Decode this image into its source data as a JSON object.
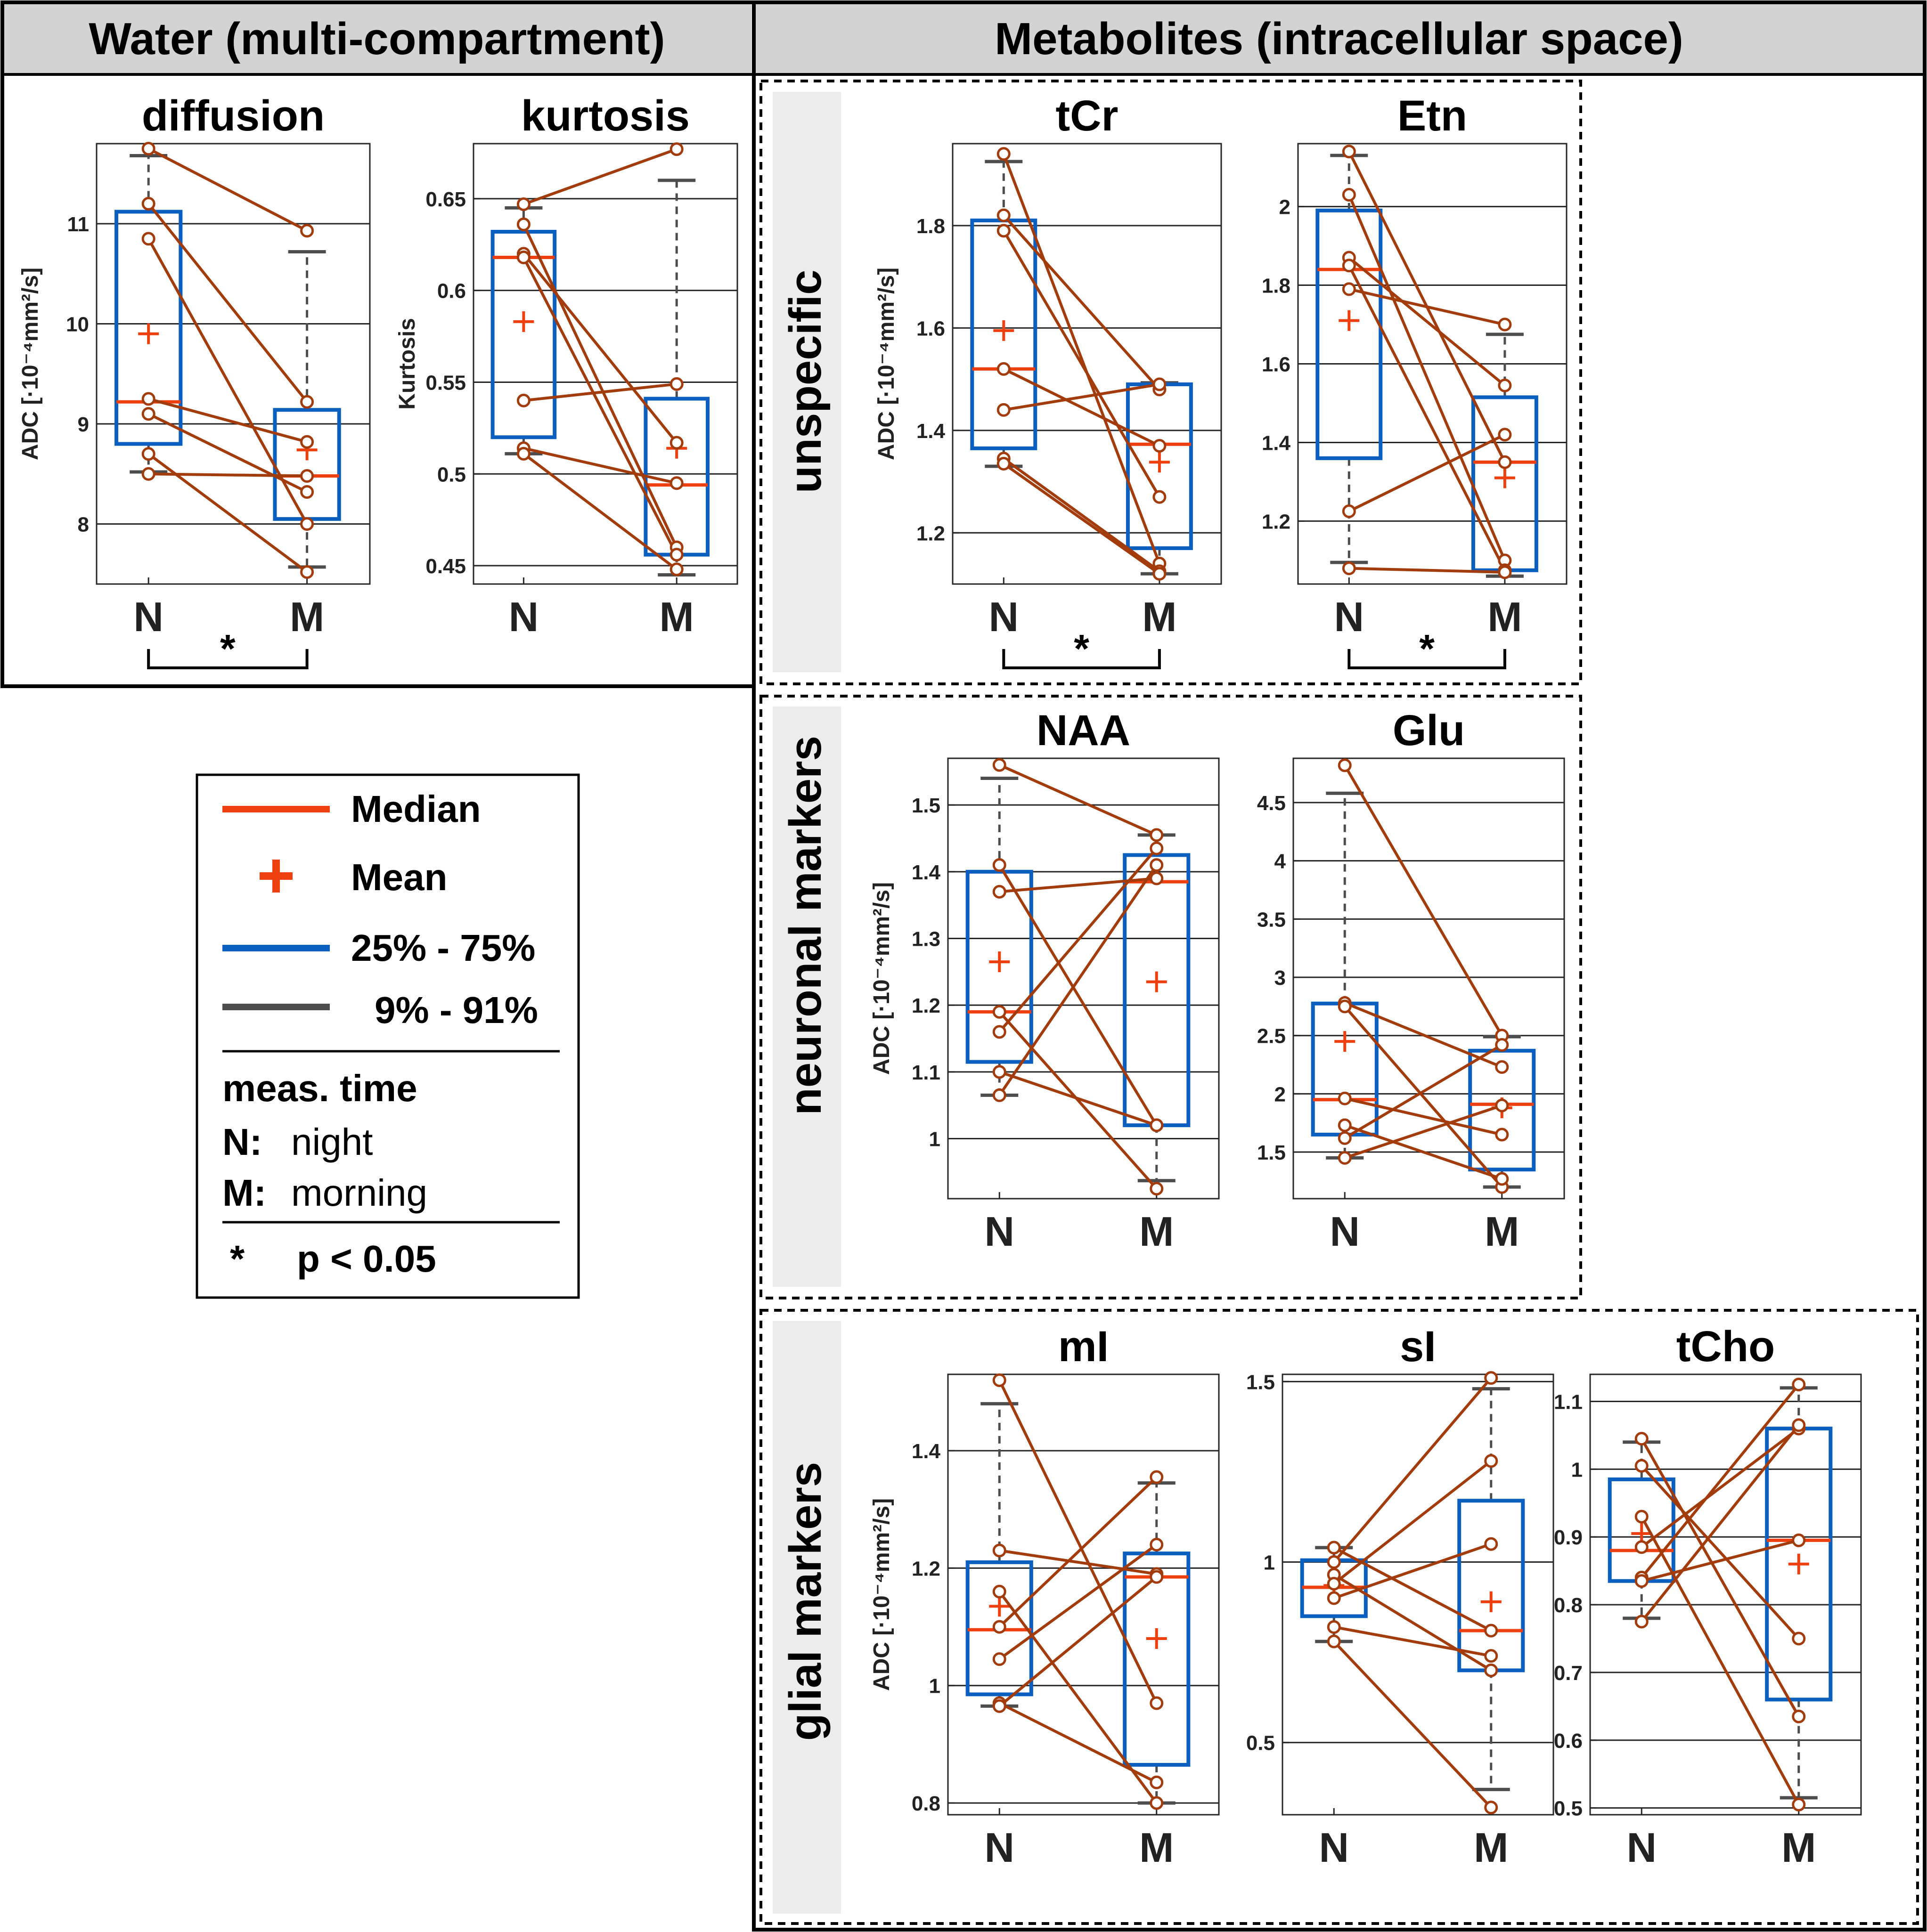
{
  "headers": {
    "water": "Water (multi-compartment)",
    "metabolites": "Metabolites (intracellular space)"
  },
  "groups": {
    "unspecific": "unspecific",
    "neuronal": "neuronal markers",
    "glial": "glial markers"
  },
  "legend": {
    "median": "Median",
    "mean": "Mean",
    "iqr": "25% - 75%",
    "whisker": "9% - 91%",
    "meas_time": "meas. time",
    "n_key": "N:",
    "n_val": "night",
    "m_key": "M:",
    "m_val": "morning",
    "star": "*",
    "p_text": "p < 0.05"
  },
  "colors": {
    "median": "#ee3f0f",
    "mean": "#ee3f0f",
    "box": "#0a5fbf",
    "whisker": "#4d4d4d",
    "pair": "#a23c0c"
  },
  "chart_data": [
    {
      "id": "diffusion",
      "type": "boxplot-paired",
      "title": "diffusion",
      "ylabel": "ADC [·10⁻⁴mm²/s]",
      "ylim": [
        7.4,
        11.8
      ],
      "yticks": [
        8,
        9,
        10,
        11
      ],
      "categories": [
        "N",
        "M"
      ],
      "boxes": [
        {
          "q1": 8.8,
          "median": 9.22,
          "q3": 11.12,
          "mean": 9.9,
          "wlo": 8.52,
          "whi": 11.68
        },
        {
          "q1": 8.05,
          "median": 8.48,
          "q3": 9.14,
          "mean": 8.74,
          "wlo": 7.57,
          "whi": 10.72
        }
      ],
      "pairs": [
        [
          11.75,
          10.93
        ],
        [
          11.2,
          9.22
        ],
        [
          10.85,
          8.0
        ],
        [
          9.25,
          8.82
        ],
        [
          9.1,
          8.32
        ],
        [
          8.7,
          7.52
        ],
        [
          8.5,
          8.48
        ]
      ],
      "significant": true,
      "star": "*"
    },
    {
      "id": "kurtosis",
      "type": "boxplot-paired",
      "title": "kurtosis",
      "ylabel": "Kurtosis",
      "ylim": [
        0.44,
        0.68
      ],
      "yticks": [
        0.45,
        0.5,
        0.55,
        0.6,
        0.65
      ],
      "categories": [
        "N",
        "M"
      ],
      "boxes": [
        {
          "q1": 0.52,
          "median": 0.618,
          "q3": 0.632,
          "mean": 0.583,
          "wlo": 0.511,
          "whi": 0.645
        },
        {
          "q1": 0.456,
          "median": 0.494,
          "q3": 0.541,
          "mean": 0.514,
          "wlo": 0.445,
          "whi": 0.66
        }
      ],
      "pairs": [
        [
          0.647,
          0.677
        ],
        [
          0.636,
          0.46
        ],
        [
          0.62,
          0.517
        ],
        [
          0.618,
          0.456
        ],
        [
          0.54,
          0.549
        ],
        [
          0.514,
          0.495
        ],
        [
          0.511,
          0.448
        ]
      ],
      "significant": false
    },
    {
      "id": "tCr",
      "type": "boxplot-paired",
      "title": "tCr",
      "ylabel": "ADC [·10⁻⁴mm²/s]",
      "ylim": [
        1.1,
        1.96
      ],
      "yticks": [
        1.2,
        1.4,
        1.6,
        1.8
      ],
      "categories": [
        "N",
        "M"
      ],
      "boxes": [
        {
          "q1": 1.365,
          "median": 1.52,
          "q3": 1.81,
          "mean": 1.595,
          "wlo": 1.33,
          "whi": 1.925
        },
        {
          "q1": 1.17,
          "median": 1.373,
          "q3": 1.49,
          "mean": 1.338,
          "wlo": 1.12,
          "whi": 1.493
        }
      ],
      "pairs": [
        [
          1.94,
          1.14
        ],
        [
          1.82,
          1.48
        ],
        [
          1.79,
          1.27
        ],
        [
          1.52,
          1.37
        ],
        [
          1.44,
          1.49
        ],
        [
          1.345,
          1.125
        ],
        [
          1.335,
          1.12
        ]
      ],
      "significant": true,
      "star": "*"
    },
    {
      "id": "Etn",
      "type": "boxplot-paired",
      "title": "Etn",
      "ylabel": "",
      "ylim": [
        1.04,
        2.16
      ],
      "yticks": [
        1.2,
        1.4,
        1.6,
        1.8,
        2
      ],
      "categories": [
        "N",
        "M"
      ],
      "boxes": [
        {
          "q1": 1.36,
          "median": 1.84,
          "q3": 1.99,
          "mean": 1.71,
          "wlo": 1.095,
          "whi": 2.13
        },
        {
          "q1": 1.075,
          "median": 1.35,
          "q3": 1.515,
          "mean": 1.31,
          "wlo": 1.06,
          "whi": 1.675
        }
      ],
      "pairs": [
        [
          2.14,
          1.35
        ],
        [
          2.03,
          1.1
        ],
        [
          1.87,
          1.545
        ],
        [
          1.85,
          1.075
        ],
        [
          1.79,
          1.7
        ],
        [
          1.225,
          1.42
        ],
        [
          1.08,
          1.07
        ]
      ],
      "significant": true,
      "star": "*"
    },
    {
      "id": "NAA",
      "type": "boxplot-paired",
      "title": "NAA",
      "ylabel": "ADC [·10⁻⁴mm²/s]",
      "ylim": [
        0.91,
        1.57
      ],
      "yticks": [
        1,
        1.1,
        1.2,
        1.3,
        1.4,
        1.5
      ],
      "categories": [
        "N",
        "M"
      ],
      "boxes": [
        {
          "q1": 1.115,
          "median": 1.19,
          "q3": 1.4,
          "mean": 1.265,
          "wlo": 1.065,
          "whi": 1.54
        },
        {
          "q1": 1.02,
          "median": 1.385,
          "q3": 1.425,
          "mean": 1.235,
          "wlo": 0.937,
          "whi": 1.455
        }
      ],
      "pairs": [
        [
          1.56,
          1.455
        ],
        [
          1.41,
          1.02
        ],
        [
          1.37,
          1.39
        ],
        [
          1.19,
          0.925
        ],
        [
          1.16,
          1.435
        ],
        [
          1.1,
          1.02
        ],
        [
          1.065,
          1.41
        ]
      ],
      "significant": false
    },
    {
      "id": "Glu",
      "type": "boxplot-paired",
      "title": "Glu",
      "ylabel": "",
      "ylim": [
        1.1,
        4.88
      ],
      "yticks": [
        1.5,
        2,
        2.5,
        3,
        3.5,
        4,
        4.5
      ],
      "categories": [
        "N",
        "M"
      ],
      "boxes": [
        {
          "q1": 1.65,
          "median": 1.95,
          "q3": 2.775,
          "mean": 2.45,
          "wlo": 1.45,
          "whi": 4.58
        },
        {
          "q1": 1.35,
          "median": 1.91,
          "q3": 2.37,
          "mean": 1.88,
          "wlo": 1.2,
          "whi": 2.49
        }
      ],
      "pairs": [
        [
          4.82,
          2.5
        ],
        [
          2.78,
          2.23
        ],
        [
          2.75,
          1.2
        ],
        [
          1.96,
          1.65
        ],
        [
          1.73,
          1.27
        ],
        [
          1.62,
          2.42
        ],
        [
          1.45,
          1.9
        ]
      ],
      "significant": false
    },
    {
      "id": "mI",
      "type": "boxplot-paired",
      "title": "mI",
      "ylabel": "ADC [·10⁻⁴mm²/s]",
      "ylim": [
        0.78,
        1.53
      ],
      "yticks": [
        0.8,
        1,
        1.2,
        1.4
      ],
      "categories": [
        "N",
        "M"
      ],
      "boxes": [
        {
          "q1": 0.985,
          "median": 1.095,
          "q3": 1.21,
          "mean": 1.135,
          "wlo": 0.965,
          "whi": 1.48
        },
        {
          "q1": 0.865,
          "median": 1.185,
          "q3": 1.225,
          "mean": 1.08,
          "wlo": 0.8,
          "whi": 1.345
        }
      ],
      "pairs": [
        [
          1.52,
          0.97
        ],
        [
          1.23,
          1.19
        ],
        [
          1.16,
          0.8
        ],
        [
          1.1,
          1.355
        ],
        [
          1.045,
          1.24
        ],
        [
          0.97,
          0.835
        ],
        [
          0.965,
          1.185
        ]
      ],
      "significant": false
    },
    {
      "id": "sI",
      "type": "boxplot-paired",
      "title": "sI",
      "ylabel": "",
      "ylim": [
        0.3,
        1.52
      ],
      "yticks": [
        0.5,
        1,
        1.5
      ],
      "categories": [
        "N",
        "M"
      ],
      "boxes": [
        {
          "q1": 0.85,
          "median": 0.93,
          "q3": 1.005,
          "mean": 0.935,
          "wlo": 0.78,
          "whi": 1.04
        },
        {
          "q1": 0.7,
          "median": 0.81,
          "q3": 1.17,
          "mean": 0.89,
          "wlo": 0.37,
          "whi": 1.48
        }
      ],
      "pairs": [
        [
          1.04,
          0.81
        ],
        [
          1.0,
          1.51
        ],
        [
          0.965,
          0.7
        ],
        [
          0.94,
          1.28
        ],
        [
          0.9,
          1.05
        ],
        [
          0.82,
          0.74
        ],
        [
          0.78,
          0.32
        ]
      ],
      "significant": false
    },
    {
      "id": "tCho",
      "type": "boxplot-paired",
      "title": "tCho",
      "ylabel": "",
      "ylim": [
        0.49,
        1.14
      ],
      "yticks": [
        0.5,
        0.6,
        0.7,
        0.8,
        0.9,
        1,
        1.1
      ],
      "categories": [
        "N",
        "M"
      ],
      "boxes": [
        {
          "q1": 0.835,
          "median": 0.88,
          "q3": 0.985,
          "mean": 0.905,
          "wlo": 0.78,
          "whi": 1.04
        },
        {
          "q1": 0.66,
          "median": 0.895,
          "q3": 1.06,
          "mean": 0.86,
          "wlo": 0.515,
          "whi": 1.12
        }
      ],
      "pairs": [
        [
          1.045,
          0.635
        ],
        [
          1.005,
          0.75
        ],
        [
          0.93,
          0.505
        ],
        [
          0.885,
          1.06
        ],
        [
          0.84,
          1.125
        ],
        [
          0.835,
          0.895
        ],
        [
          0.775,
          1.065
        ]
      ],
      "significant": false
    }
  ]
}
